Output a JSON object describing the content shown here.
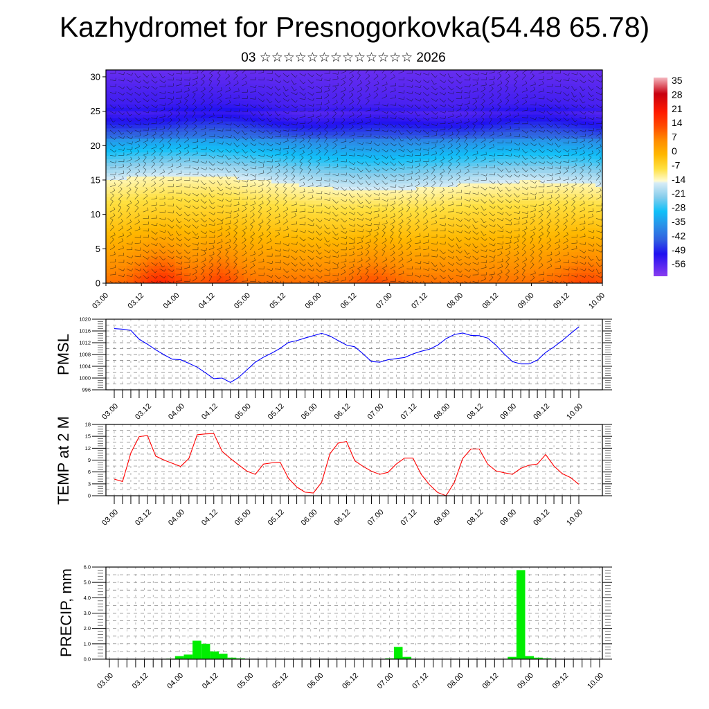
{
  "header": {
    "title": "Kazhydromet for Presnogorkovka(54.48 65.78)",
    "subtitle": "03 ☆☆☆☆☆☆☆☆☆☆☆☆☆ 2026"
  },
  "time_labels": [
    "03.00",
    "03.12",
    "04.00",
    "04.12",
    "05.00",
    "05.12",
    "06.00",
    "06.12",
    "07.00",
    "07.12",
    "08.00",
    "08.12",
    "09.00",
    "09.12",
    "10.00"
  ],
  "chart_data": [
    {
      "type": "heatmap",
      "name": "temperature-wind cross-section",
      "ylabel": "",
      "yticks": [
        "0",
        "5",
        "10",
        "15",
        "20",
        "25",
        "30"
      ],
      "ylim": [
        0,
        31
      ],
      "colorbar": {
        "labels": [
          "35",
          "28",
          "21",
          "14",
          "7",
          "0",
          "-7",
          "-14",
          "-21",
          "-28",
          "-35",
          "-42",
          "-49",
          "-56"
        ],
        "range": [
          -60,
          38
        ],
        "stops": [
          {
            "v": 38,
            "c": "#f5b7bf"
          },
          {
            "v": 30,
            "c": "#c80010"
          },
          {
            "v": 21,
            "c": "#ff1a00"
          },
          {
            "v": 14,
            "c": "#ff4a00"
          },
          {
            "v": 7,
            "c": "#ff8c00"
          },
          {
            "v": 0,
            "c": "#ffb800"
          },
          {
            "v": -7,
            "c": "#ffe040"
          },
          {
            "v": -13,
            "c": "#fffbd0"
          },
          {
            "v": -14,
            "c": "#d8ecf6"
          },
          {
            "v": -21,
            "c": "#86cdec"
          },
          {
            "v": -28,
            "c": "#10c0f8"
          },
          {
            "v": -35,
            "c": "#2a90e8"
          },
          {
            "v": -42,
            "c": "#3060e0"
          },
          {
            "v": -49,
            "c": "#2010f0"
          },
          {
            "v": -60,
            "c": "#8a3cf0"
          }
        ]
      }
    },
    {
      "type": "line",
      "name": "PMSL",
      "ylabel": "PMSL",
      "ylim": [
        996,
        1020
      ],
      "yticks": [
        "996",
        "1000",
        "1004",
        "1008",
        "1012",
        "1016",
        "1020"
      ],
      "x_step_hours": 3,
      "color": "#0000ff",
      "values": [
        1016.8,
        1016.6,
        1016.2,
        1013.2,
        1011.5,
        1009.6,
        1007.9,
        1006.4,
        1006.2,
        1005.0,
        1003.7,
        1001.8,
        999.8,
        1000.0,
        998.5,
        1000.2,
        1002.8,
        1005.4,
        1007.1,
        1008.5,
        1010.1,
        1012.1,
        1012.7,
        1013.6,
        1014.4,
        1015.2,
        1014.3,
        1012.7,
        1011.2,
        1010.6,
        1008.2,
        1005.6,
        1005.4,
        1006.2,
        1006.6,
        1007.0,
        1008.2,
        1009.1,
        1009.8,
        1011.2,
        1013.4,
        1014.8,
        1015.3,
        1014.5,
        1014.4,
        1013.6,
        1011.2,
        1008.2,
        1005.6,
        1004.8,
        1004.8,
        1006.1,
        1008.7,
        1010.6,
        1012.7,
        1015.1,
        1017.4
      ]
    },
    {
      "type": "line",
      "name": "TEMP at 2 M",
      "ylabel": "TEMP at 2 M",
      "ylim": [
        0,
        18
      ],
      "yticks": [
        "0",
        "3",
        "6",
        "9",
        "12",
        "15",
        "18"
      ],
      "x_step_hours": 3,
      "color": "#ff0000",
      "values": [
        4.2,
        3.6,
        10.8,
        14.9,
        15.2,
        10.0,
        9.0,
        8.2,
        7.4,
        9.4,
        15.4,
        15.6,
        15.7,
        11.2,
        9.4,
        7.8,
        6.2,
        5.4,
        8.0,
        8.3,
        8.5,
        4.4,
        2.2,
        0.9,
        0.7,
        3.4,
        10.6,
        13.3,
        13.7,
        8.8,
        7.4,
        6.2,
        5.4,
        5.9,
        8.0,
        9.5,
        9.5,
        5.4,
        2.8,
        0.8,
        0.0,
        3.4,
        9.4,
        11.8,
        11.8,
        8.0,
        6.3,
        5.8,
        5.4,
        6.9,
        7.7,
        8.0,
        10.4,
        7.5,
        5.6,
        4.6,
        2.9
      ]
    },
    {
      "type": "bar",
      "name": "PRECIP, mm",
      "ylabel": "PRECIP, mm",
      "ylim": [
        0,
        6
      ],
      "yticks": [
        "0.0",
        "1.0",
        "2.0",
        "3.0",
        "4.0",
        "5.0",
        "6.0"
      ],
      "x_step_hours": 3,
      "color": "#00ee00",
      "values": [
        0,
        0,
        0,
        0,
        0,
        0,
        0.02,
        0.03,
        0.2,
        0.3,
        1.2,
        1.0,
        0.5,
        0.35,
        0.1,
        0.05,
        0,
        0,
        0,
        0,
        0,
        0,
        0,
        0,
        0,
        0,
        0,
        0,
        0,
        0,
        0,
        0,
        0.05,
        0.8,
        0.15,
        0,
        0,
        0,
        0,
        0,
        0,
        0,
        0,
        0,
        0,
        0,
        0.15,
        5.8,
        0.2,
        0.1,
        0.05,
        0.02,
        0,
        0,
        0,
        0,
        0
      ]
    }
  ]
}
